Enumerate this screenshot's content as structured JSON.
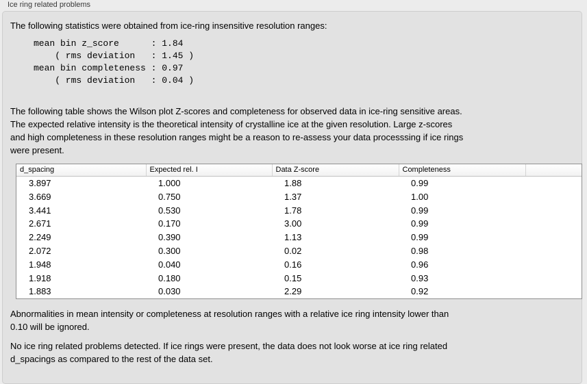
{
  "panel": {
    "title": "Ice ring related problems"
  },
  "intro": "The following statistics were obtained from ice-ring insensitive resolution ranges:",
  "stats_lines": [
    "mean bin z_score      : 1.84",
    "    ( rms deviation   : 1.45 )",
    "mean bin completeness : 0.97",
    "    ( rms deviation   : 0.04 )"
  ],
  "table_description_lines": [
    "The following table shows the Wilson plot Z-scores and completeness for observed data in ice-ring sensitive areas.",
    "The expected relative intensity is the theoretical intensity of crystalline ice at the given resolution. Large z-scores",
    "and high completeness in these resolution ranges might be a reason to re-assess your data processsing if ice rings",
    "were present."
  ],
  "table": {
    "headers": [
      "d_spacing",
      "Expected rel. I",
      "Data Z-score",
      "Completeness"
    ],
    "rows": [
      [
        "3.897",
        "1.000",
        "1.88",
        "0.99"
      ],
      [
        "3.669",
        "0.750",
        "1.37",
        "1.00"
      ],
      [
        "3.441",
        "0.530",
        "1.78",
        "0.99"
      ],
      [
        "2.671",
        "0.170",
        "3.00",
        "0.99"
      ],
      [
        "2.249",
        "0.390",
        "1.13",
        "0.99"
      ],
      [
        "2.072",
        "0.300",
        "0.02",
        "0.98"
      ],
      [
        "1.948",
        "0.040",
        "0.16",
        "0.96"
      ],
      [
        "1.918",
        "0.180",
        "0.15",
        "0.93"
      ],
      [
        "1.883",
        "0.030",
        "2.29",
        "0.92"
      ]
    ]
  },
  "ignore_note_lines": [
    "Abnormalities in mean intensity or completeness at resolution ranges with a relative ice ring intensity lower than",
    "0.10 will be ignored."
  ],
  "conclusion_lines": [
    "No ice ring related problems detected. If ice rings were present, the data does not look worse at ice ring related",
    "d_spacings as compared to the rest of the data set."
  ],
  "colors": {
    "window_bg": "#ececec",
    "groupbox_bg": "#e2e2e2",
    "groupbox_border": "#cdcdcd",
    "table_border": "#8f8f8f",
    "header_divider": "#d4d4d4",
    "text": "#000000",
    "label_text": "#383838"
  }
}
